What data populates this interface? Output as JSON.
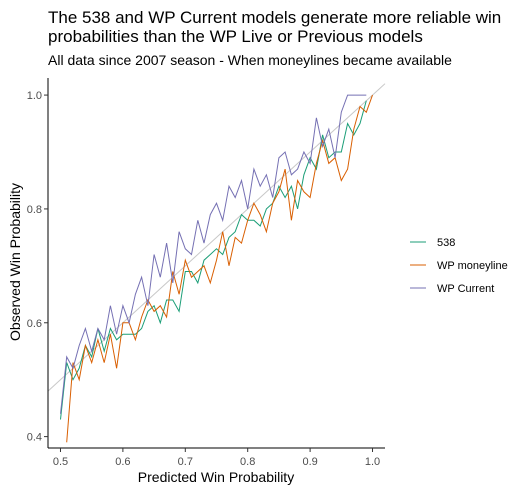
{
  "chart_data": {
    "type": "line",
    "title": "The 538 and WP Current models generate more reliable win probabilities than the WP Live or Previous models",
    "subtitle": "All data since 2007 season - When moneylines became available",
    "xlabel": "Predicted Win Probability",
    "ylabel": "Observed Win Probability",
    "xlim": [
      0.48,
      1.02
    ],
    "ylim": [
      0.38,
      1.03
    ],
    "xticks": [
      "0.5",
      "0.6",
      "0.7",
      "0.8",
      "0.9",
      "1.0"
    ],
    "yticks": [
      "0.4",
      "0.6",
      "0.8",
      "1.0"
    ],
    "grid": false,
    "legend_position": "right",
    "reference_line": {
      "from": [
        0.48,
        0.48
      ],
      "to": [
        1.02,
        1.02
      ],
      "color": "#c8c8c8"
    },
    "colors": {
      "538": "#1b9e77",
      "WP moneyline": "#d95f02",
      "WP Current": "#7570b3"
    },
    "series": [
      {
        "name": "538",
        "color": "#1b9e77",
        "x": [
          0.5,
          0.51,
          0.52,
          0.53,
          0.54,
          0.55,
          0.56,
          0.57,
          0.58,
          0.59,
          0.6,
          0.61,
          0.62,
          0.63,
          0.64,
          0.65,
          0.66,
          0.67,
          0.68,
          0.69,
          0.7,
          0.71,
          0.72,
          0.73,
          0.74,
          0.75,
          0.76,
          0.77,
          0.78,
          0.79,
          0.8,
          0.81,
          0.82,
          0.83,
          0.84,
          0.85,
          0.86,
          0.87,
          0.88,
          0.89,
          0.9,
          0.91,
          0.92,
          0.93,
          0.94,
          0.95,
          0.96,
          0.97,
          0.98,
          0.99
        ],
        "y": [
          0.43,
          0.53,
          0.5,
          0.52,
          0.56,
          0.54,
          0.59,
          0.55,
          0.59,
          0.57,
          0.58,
          0.58,
          0.58,
          0.59,
          0.62,
          0.63,
          0.6,
          0.64,
          0.64,
          0.62,
          0.69,
          0.69,
          0.67,
          0.71,
          0.72,
          0.73,
          0.72,
          0.75,
          0.76,
          0.79,
          0.78,
          0.78,
          0.77,
          0.8,
          0.81,
          0.84,
          0.82,
          0.84,
          0.8,
          0.86,
          0.89,
          0.87,
          0.93,
          0.89,
          0.9,
          0.9,
          0.95,
          0.93,
          0.95,
          0.99
        ]
      },
      {
        "name": "WP moneyline",
        "color": "#d95f02",
        "x": [
          0.51,
          0.52,
          0.53,
          0.54,
          0.55,
          0.56,
          0.57,
          0.58,
          0.59,
          0.6,
          0.61,
          0.62,
          0.63,
          0.64,
          0.65,
          0.66,
          0.67,
          0.68,
          0.69,
          0.7,
          0.71,
          0.72,
          0.73,
          0.74,
          0.75,
          0.76,
          0.77,
          0.78,
          0.79,
          0.8,
          0.81,
          0.82,
          0.83,
          0.84,
          0.85,
          0.86,
          0.87,
          0.88,
          0.89,
          0.9,
          0.91,
          0.92,
          0.93,
          0.94,
          0.95,
          0.96,
          0.97,
          0.98,
          0.99,
          1.0
        ],
        "y": [
          0.39,
          0.53,
          0.5,
          0.56,
          0.53,
          0.57,
          0.53,
          0.58,
          0.52,
          0.6,
          0.6,
          0.57,
          0.61,
          0.64,
          0.62,
          0.63,
          0.61,
          0.69,
          0.65,
          0.71,
          0.68,
          0.69,
          0.7,
          0.67,
          0.71,
          0.76,
          0.7,
          0.75,
          0.74,
          0.78,
          0.81,
          0.79,
          0.76,
          0.81,
          0.83,
          0.87,
          0.78,
          0.85,
          0.83,
          0.82,
          0.88,
          0.92,
          0.88,
          0.89,
          0.85,
          0.87,
          0.94,
          0.98,
          0.97,
          1.0
        ]
      },
      {
        "name": "WP Current",
        "color": "#7570b3",
        "x": [
          0.5,
          0.51,
          0.52,
          0.53,
          0.54,
          0.55,
          0.56,
          0.57,
          0.58,
          0.59,
          0.6,
          0.61,
          0.62,
          0.63,
          0.64,
          0.65,
          0.66,
          0.67,
          0.68,
          0.69,
          0.7,
          0.71,
          0.72,
          0.73,
          0.74,
          0.75,
          0.76,
          0.77,
          0.78,
          0.79,
          0.8,
          0.81,
          0.82,
          0.83,
          0.84,
          0.85,
          0.86,
          0.87,
          0.88,
          0.89,
          0.9,
          0.91,
          0.92,
          0.93,
          0.94,
          0.95,
          0.96,
          0.97,
          0.98,
          0.99
        ],
        "y": [
          0.44,
          0.54,
          0.52,
          0.56,
          0.59,
          0.55,
          0.59,
          0.57,
          0.63,
          0.58,
          0.63,
          0.6,
          0.65,
          0.68,
          0.63,
          0.72,
          0.68,
          0.74,
          0.67,
          0.76,
          0.73,
          0.72,
          0.78,
          0.74,
          0.79,
          0.81,
          0.78,
          0.84,
          0.82,
          0.85,
          0.8,
          0.87,
          0.84,
          0.86,
          0.82,
          0.89,
          0.9,
          0.86,
          0.87,
          0.9,
          0.88,
          0.96,
          0.91,
          0.94,
          0.89,
          0.97,
          1.0,
          1.0,
          1.0,
          1.0
        ]
      }
    ]
  }
}
